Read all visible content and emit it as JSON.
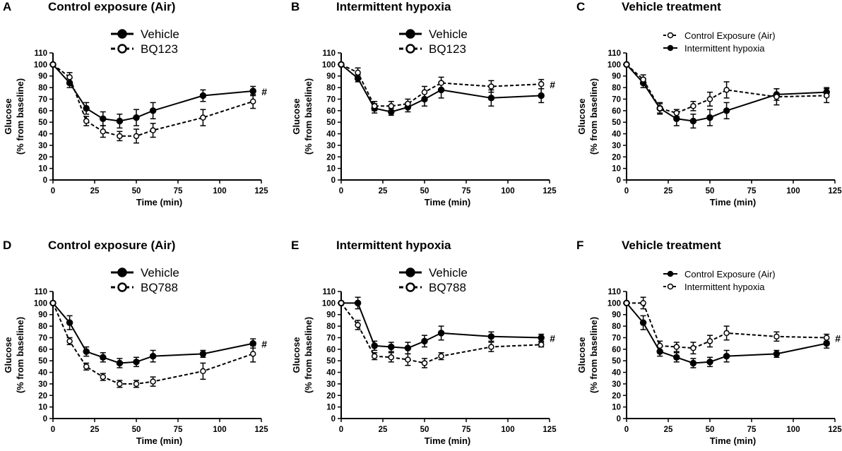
{
  "figure": {
    "significance_mark": "#"
  },
  "chart_data": [
    {
      "type": "line",
      "panel": "A",
      "title": "Control exposure (Air)",
      "xlabel": "Time  (min)",
      "ylabel_line1": "Glucose",
      "ylabel_line2": "(% from baseline)",
      "xlim": [
        0,
        125
      ],
      "ylim": [
        0,
        110
      ],
      "xticks": [
        0,
        25,
        50,
        75,
        100,
        125
      ],
      "yticks": [
        0,
        10,
        20,
        30,
        40,
        50,
        60,
        70,
        80,
        90,
        100,
        110
      ],
      "legend_style": "big",
      "legend_position": "top-center",
      "significance": "#",
      "series": [
        {
          "name": "Vehicle",
          "style": "solid-filled",
          "x": [
            0,
            10,
            20,
            30,
            40,
            50,
            60,
            90,
            120
          ],
          "y": [
            100,
            84,
            62,
            53,
            51,
            54,
            60,
            73,
            77
          ],
          "err": [
            0,
            4,
            5,
            6,
            6,
            7,
            7,
            5,
            4
          ]
        },
        {
          "name": "BQ123",
          "style": "dashed-open",
          "x": [
            0,
            10,
            20,
            30,
            40,
            50,
            60,
            90,
            120
          ],
          "y": [
            100,
            89,
            51,
            42,
            38,
            38,
            43,
            54,
            68
          ],
          "err": [
            0,
            4,
            4,
            5,
            4,
            6,
            6,
            7,
            6
          ]
        }
      ]
    },
    {
      "type": "line",
      "panel": "B",
      "title": "Intermittent hypoxia",
      "xlabel": "Time  (min)",
      "ylabel_line1": "Glucose",
      "ylabel_line2": "(% from baseline)",
      "xlim": [
        0,
        125
      ],
      "ylim": [
        0,
        110
      ],
      "xticks": [
        0,
        25,
        50,
        75,
        100,
        125
      ],
      "yticks": [
        0,
        10,
        20,
        30,
        40,
        50,
        60,
        70,
        80,
        90,
        100,
        110
      ],
      "legend_style": "big",
      "legend_position": "top-center",
      "significance": "#",
      "series": [
        {
          "name": "Vehicle",
          "style": "solid-filled",
          "x": [
            0,
            10,
            20,
            30,
            40,
            50,
            60,
            90,
            120
          ],
          "y": [
            100,
            88,
            62,
            59,
            63,
            70,
            78,
            71,
            73
          ],
          "err": [
            0,
            3,
            4,
            3,
            4,
            6,
            7,
            7,
            6
          ]
        },
        {
          "name": "BQ123",
          "style": "dashed-open",
          "x": [
            0,
            10,
            20,
            30,
            40,
            50,
            60,
            90,
            120
          ],
          "y": [
            100,
            93,
            64,
            64,
            66,
            76,
            84,
            81,
            83
          ],
          "err": [
            0,
            4,
            4,
            4,
            4,
            5,
            5,
            5,
            4
          ]
        }
      ]
    },
    {
      "type": "line",
      "panel": "C",
      "title": "Vehicle treatment",
      "xlabel": "Time  (min)",
      "ylabel_line1": "Glucose",
      "ylabel_line2": "(% from baseline)",
      "xlim": [
        0,
        125
      ],
      "ylim": [
        0,
        110
      ],
      "xticks": [
        0,
        25,
        50,
        75,
        100,
        125
      ],
      "yticks": [
        0,
        10,
        20,
        30,
        40,
        50,
        60,
        70,
        80,
        90,
        100,
        110
      ],
      "legend_style": "small",
      "legend_position": "top-right",
      "significance": "",
      "series": [
        {
          "name": "Control Exposure  (Air)",
          "style": "dashed-open",
          "x": [
            0,
            10,
            20,
            30,
            40,
            50,
            60,
            90,
            120
          ],
          "y": [
            100,
            87,
            62,
            58,
            64,
            70,
            78,
            72,
            73
          ],
          "err": [
            0,
            4,
            4,
            3,
            4,
            6,
            7,
            7,
            6
          ]
        },
        {
          "name": "Intermittent hypoxia",
          "style": "solid-filled",
          "x": [
            0,
            10,
            20,
            30,
            40,
            50,
            60,
            90,
            120
          ],
          "y": [
            100,
            84,
            62,
            53,
            51,
            54,
            60,
            74,
            76
          ],
          "err": [
            0,
            4,
            5,
            6,
            6,
            7,
            7,
            5,
            4
          ]
        }
      ]
    },
    {
      "type": "line",
      "panel": "D",
      "title": "Control exposure (Air)",
      "xlabel": "Time  (min)",
      "ylabel_line1": "Glucose",
      "ylabel_line2": "(% from baseline)",
      "xlim": [
        0,
        125
      ],
      "ylim": [
        0,
        110
      ],
      "xticks": [
        0,
        25,
        50,
        75,
        100,
        125
      ],
      "yticks": [
        0,
        10,
        20,
        30,
        40,
        50,
        60,
        70,
        80,
        90,
        100,
        110
      ],
      "legend_style": "big",
      "legend_position": "top-center",
      "significance": "#",
      "series": [
        {
          "name": "Vehicle",
          "style": "solid-filled",
          "x": [
            0,
            10,
            20,
            30,
            40,
            50,
            60,
            90,
            120
          ],
          "y": [
            100,
            83,
            58,
            53,
            48,
            49,
            54,
            56,
            65
          ],
          "err": [
            0,
            6,
            4,
            4,
            4,
            4,
            5,
            3,
            4
          ]
        },
        {
          "name": "BQ788",
          "style": "dashed-open",
          "x": [
            0,
            10,
            20,
            30,
            40,
            50,
            60,
            90,
            120
          ],
          "y": [
            100,
            67,
            45,
            36,
            30,
            30,
            32,
            41,
            56
          ],
          "err": [
            0,
            3,
            3,
            3,
            3,
            3,
            4,
            7,
            7
          ]
        }
      ]
    },
    {
      "type": "line",
      "panel": "E",
      "title": "Intermittent hypoxia",
      "xlabel": "Time  (min)",
      "ylabel_line1": "Glucose",
      "ylabel_line2": "(% from baseline)",
      "xlim": [
        0,
        125
      ],
      "ylim": [
        0,
        110
      ],
      "xticks": [
        0,
        25,
        50,
        75,
        100,
        125
      ],
      "yticks": [
        0,
        10,
        20,
        30,
        40,
        50,
        60,
        70,
        80,
        90,
        100,
        110
      ],
      "legend_style": "big",
      "legend_position": "top-center",
      "significance": "#",
      "series": [
        {
          "name": "Vehicle",
          "style": "solid-filled",
          "x": [
            0,
            10,
            20,
            30,
            40,
            50,
            60,
            90,
            120
          ],
          "y": [
            100,
            100,
            63,
            62,
            61,
            67,
            74,
            71,
            70
          ],
          "err": [
            0,
            5,
            4,
            4,
            5,
            5,
            6,
            4,
            3
          ]
        },
        {
          "name": "BQ788",
          "style": "dashed-open",
          "x": [
            0,
            10,
            20,
            30,
            40,
            50,
            60,
            90,
            120
          ],
          "y": [
            100,
            81,
            54,
            53,
            51,
            48,
            54,
            62,
            64
          ],
          "err": [
            0,
            4,
            3,
            4,
            5,
            4,
            3,
            4,
            2
          ]
        }
      ]
    },
    {
      "type": "line",
      "panel": "F",
      "title": "Vehicle treatment",
      "xlabel": "Time  (min)",
      "ylabel_line1": "Glucose",
      "ylabel_line2": "(% from baseline)",
      "xlim": [
        0,
        125
      ],
      "ylim": [
        0,
        110
      ],
      "xticks": [
        0,
        25,
        50,
        75,
        100,
        125
      ],
      "yticks": [
        0,
        10,
        20,
        30,
        40,
        50,
        60,
        70,
        80,
        90,
        100,
        110
      ],
      "legend_style": "small",
      "legend_position": "top-right",
      "significance": "#",
      "series": [
        {
          "name": "Control Exposure  (Air)",
          "style": "solid-filled",
          "x": [
            0,
            10,
            20,
            30,
            40,
            50,
            60,
            90,
            120
          ],
          "y": [
            100,
            83,
            58,
            53,
            48,
            49,
            54,
            56,
            65
          ],
          "err": [
            0,
            6,
            4,
            4,
            4,
            4,
            5,
            3,
            4
          ]
        },
        {
          "name": "Intermittent hypoxia",
          "style": "dashed-open",
          "x": [
            0,
            10,
            20,
            30,
            40,
            50,
            60,
            90,
            120
          ],
          "y": [
            100,
            100,
            63,
            62,
            61,
            67,
            74,
            71,
            70
          ],
          "err": [
            0,
            5,
            4,
            4,
            5,
            5,
            6,
            4,
            3
          ]
        }
      ]
    }
  ]
}
